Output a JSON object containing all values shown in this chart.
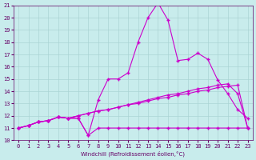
{
  "xlabel": "Windchill (Refroidissement éolien,°C)",
  "background_color": "#c8ecec",
  "grid_color": "#aad4d4",
  "line_color": "#cc00cc",
  "xlim": [
    -0.5,
    23.5
  ],
  "ylim": [
    10,
    21
  ],
  "xticks": [
    0,
    1,
    2,
    3,
    4,
    5,
    6,
    7,
    8,
    9,
    10,
    11,
    12,
    13,
    14,
    15,
    16,
    17,
    18,
    19,
    20,
    21,
    22,
    23
  ],
  "yticks": [
    10,
    11,
    12,
    13,
    14,
    15,
    16,
    17,
    18,
    19,
    20,
    21
  ],
  "line1_x": [
    0,
    1,
    2,
    3,
    4,
    5,
    6,
    7,
    8,
    9,
    10,
    11,
    12,
    13,
    14,
    15,
    16,
    17,
    18,
    19,
    20,
    21,
    22,
    23
  ],
  "line1_y": [
    11.0,
    11.2,
    11.5,
    11.6,
    11.9,
    11.8,
    11.8,
    10.4,
    11.0,
    11.0,
    11.0,
    11.0,
    11.0,
    11.0,
    11.0,
    11.0,
    11.0,
    11.0,
    11.0,
    11.0,
    11.0,
    11.0,
    11.0,
    11.0
  ],
  "line2_x": [
    0,
    1,
    2,
    3,
    4,
    5,
    6,
    7,
    8,
    9,
    10,
    11,
    12,
    13,
    14,
    15,
    16,
    17,
    18,
    19,
    20,
    21,
    22,
    23
  ],
  "line2_y": [
    11.0,
    11.2,
    11.5,
    11.6,
    11.9,
    11.8,
    11.8,
    10.4,
    13.3,
    15.0,
    15.0,
    15.5,
    18.0,
    20.0,
    21.2,
    19.8,
    16.5,
    16.6,
    17.1,
    16.6,
    14.9,
    13.8,
    12.5,
    11.8
  ],
  "line3_x": [
    0,
    1,
    2,
    3,
    4,
    5,
    6,
    7,
    8,
    9,
    10,
    11,
    12,
    13,
    14,
    15,
    16,
    17,
    18,
    19,
    20,
    21,
    22,
    23
  ],
  "line3_y": [
    11.0,
    11.2,
    11.5,
    11.6,
    11.9,
    11.8,
    12.0,
    12.2,
    12.4,
    12.5,
    12.7,
    12.9,
    13.0,
    13.2,
    13.4,
    13.5,
    13.7,
    13.8,
    14.0,
    14.1,
    14.3,
    14.4,
    14.5,
    11.0
  ],
  "line4_x": [
    0,
    1,
    2,
    3,
    4,
    5,
    6,
    7,
    8,
    9,
    10,
    11,
    12,
    13,
    14,
    15,
    16,
    17,
    18,
    19,
    20,
    21,
    22,
    23
  ],
  "line4_y": [
    11.0,
    11.2,
    11.5,
    11.6,
    11.9,
    11.8,
    12.0,
    12.2,
    12.4,
    12.5,
    12.7,
    12.9,
    13.1,
    13.3,
    13.5,
    13.7,
    13.8,
    14.0,
    14.2,
    14.3,
    14.5,
    14.6,
    13.8,
    11.0
  ]
}
